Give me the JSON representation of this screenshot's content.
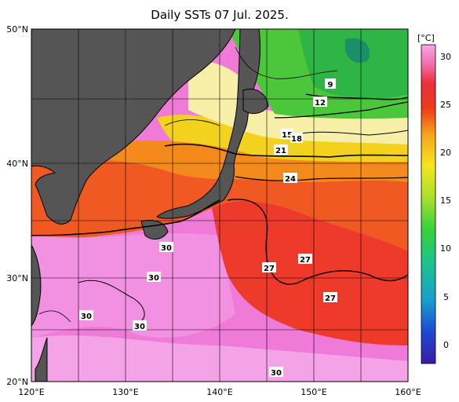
{
  "title": "Daily SSTs 07 Jul. 2025.",
  "colorbar": {
    "unit": "[°C]",
    "ticks": [
      "30",
      "25",
      "20",
      "15",
      "10",
      "5",
      "0"
    ],
    "min": -2,
    "max": 32,
    "colors": [
      "#3a1aa8",
      "#1b4ad6",
      "#1a9fd0",
      "#1cc48a",
      "#35d23a",
      "#a8e02a",
      "#f3e61e",
      "#f8a318",
      "#ee3a1a",
      "#ec2e3c",
      "#f36fae",
      "#f4a6e8"
    ]
  },
  "axes": {
    "lat_labels": [
      "50°N",
      "40°N",
      "30°N",
      "20°N"
    ],
    "lon_labels": [
      "120°E",
      "130°E",
      "140°E",
      "150°E",
      "160°E"
    ]
  },
  "contour_labels": [
    "9",
    "12",
    "15",
    "18",
    "21",
    "24",
    "27",
    "27",
    "27",
    "30",
    "30",
    "30",
    "30",
    "30"
  ],
  "colors": {
    "land": "#555555",
    "grid": "#000000"
  }
}
